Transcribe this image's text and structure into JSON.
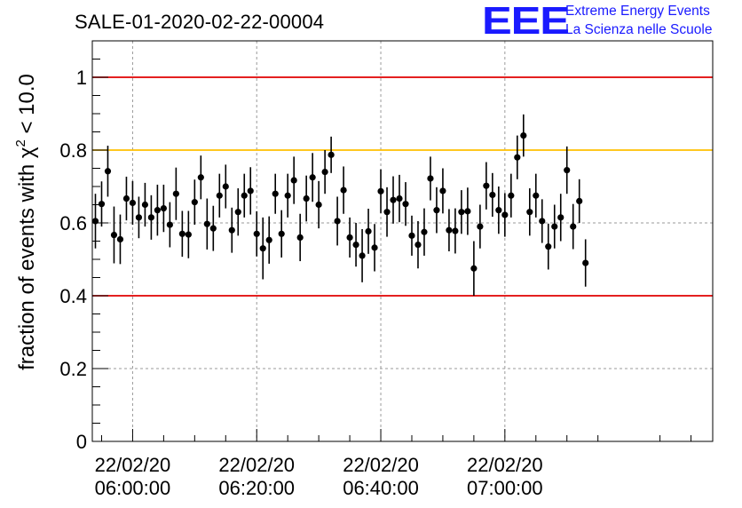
{
  "header": {
    "title": "SALE-01-2020-02-22-00004",
    "logo_mark": "EEE",
    "logo_line1": "Extreme Energy Events",
    "logo_line2": "La Scienza nelle Scuole"
  },
  "colors": {
    "marker": "#000000",
    "upper_limit": "#e00000",
    "lower_limit": "#e00000",
    "warning": "#ffbf00",
    "logo": "#1a1aff"
  },
  "chart_data": {
    "type": "scatter",
    "ylabel_prefix": "fraction of events with ",
    "ylabel_chi": "χ",
    "ylabel_exp": "2",
    "ylabel_suffix": " < 10.0",
    "ylim": [
      0,
      1.1
    ],
    "yticks": [
      0,
      0.2,
      0.4,
      0.6,
      0.8,
      1
    ],
    "ytick_labels": [
      "0",
      "0.2",
      "0.4",
      "0.6",
      "0.8",
      "1"
    ],
    "xlim": [
      "05:53:30",
      "07:33:30"
    ],
    "xticks": [
      "06:00:00",
      "06:20:00",
      "06:40:00",
      "07:00:00"
    ],
    "xtick_date": "22/02/20",
    "grid": true,
    "reference_lines": [
      {
        "y": 1.0,
        "color": "#e00000"
      },
      {
        "y": 0.8,
        "color": "#ffbf00"
      },
      {
        "y": 0.4,
        "color": "#e00000"
      }
    ],
    "x_start": "05:54:00",
    "x_step_minutes": 1,
    "values": [
      0.605,
      0.652,
      0.742,
      0.567,
      0.555,
      0.667,
      0.655,
      0.615,
      0.65,
      0.615,
      0.635,
      0.64,
      0.595,
      0.68,
      0.57,
      0.568,
      0.657,
      0.725,
      0.597,
      0.585,
      0.675,
      0.7,
      0.58,
      0.63,
      0.675,
      0.688,
      0.57,
      0.53,
      0.553,
      0.68,
      0.57,
      0.675,
      0.717,
      0.56,
      0.667,
      0.725,
      0.65,
      0.74,
      0.787,
      0.605,
      0.69,
      0.56,
      0.54,
      0.51,
      0.577,
      0.532,
      0.687,
      0.63,
      0.663,
      0.667,
      0.652,
      0.565,
      0.54,
      0.575,
      0.722,
      0.635,
      0.688,
      0.58,
      0.578,
      0.63,
      0.632,
      0.475,
      0.59,
      0.702,
      0.677,
      0.635,
      0.622,
      0.675,
      0.78,
      0.84,
      0.63,
      0.675,
      0.605,
      0.535,
      0.59,
      0.615,
      0.745,
      0.59,
      0.66,
      0.49
    ],
    "errors": [
      0.075,
      0.062,
      0.07,
      0.078,
      0.068,
      0.06,
      0.06,
      0.057,
      0.06,
      0.061,
      0.07,
      0.065,
      0.062,
      0.072,
      0.063,
      0.065,
      0.062,
      0.06,
      0.07,
      0.062,
      0.06,
      0.06,
      0.062,
      0.065,
      0.06,
      0.065,
      0.062,
      0.085,
      0.065,
      0.055,
      0.065,
      0.06,
      0.065,
      0.065,
      0.063,
      0.067,
      0.065,
      0.06,
      0.05,
      0.067,
      0.065,
      0.055,
      0.06,
      0.073,
      0.062,
      0.065,
      0.06,
      0.068,
      0.065,
      0.065,
      0.06,
      0.055,
      0.065,
      0.065,
      0.06,
      0.063,
      0.062,
      0.058,
      0.062,
      0.06,
      0.065,
      0.075,
      0.06,
      0.065,
      0.06,
      0.065,
      0.06,
      0.06,
      0.06,
      0.058,
      0.065,
      0.06,
      0.06,
      0.063,
      0.06,
      0.065,
      0.065,
      0.062,
      0.06,
      0.065
    ]
  }
}
